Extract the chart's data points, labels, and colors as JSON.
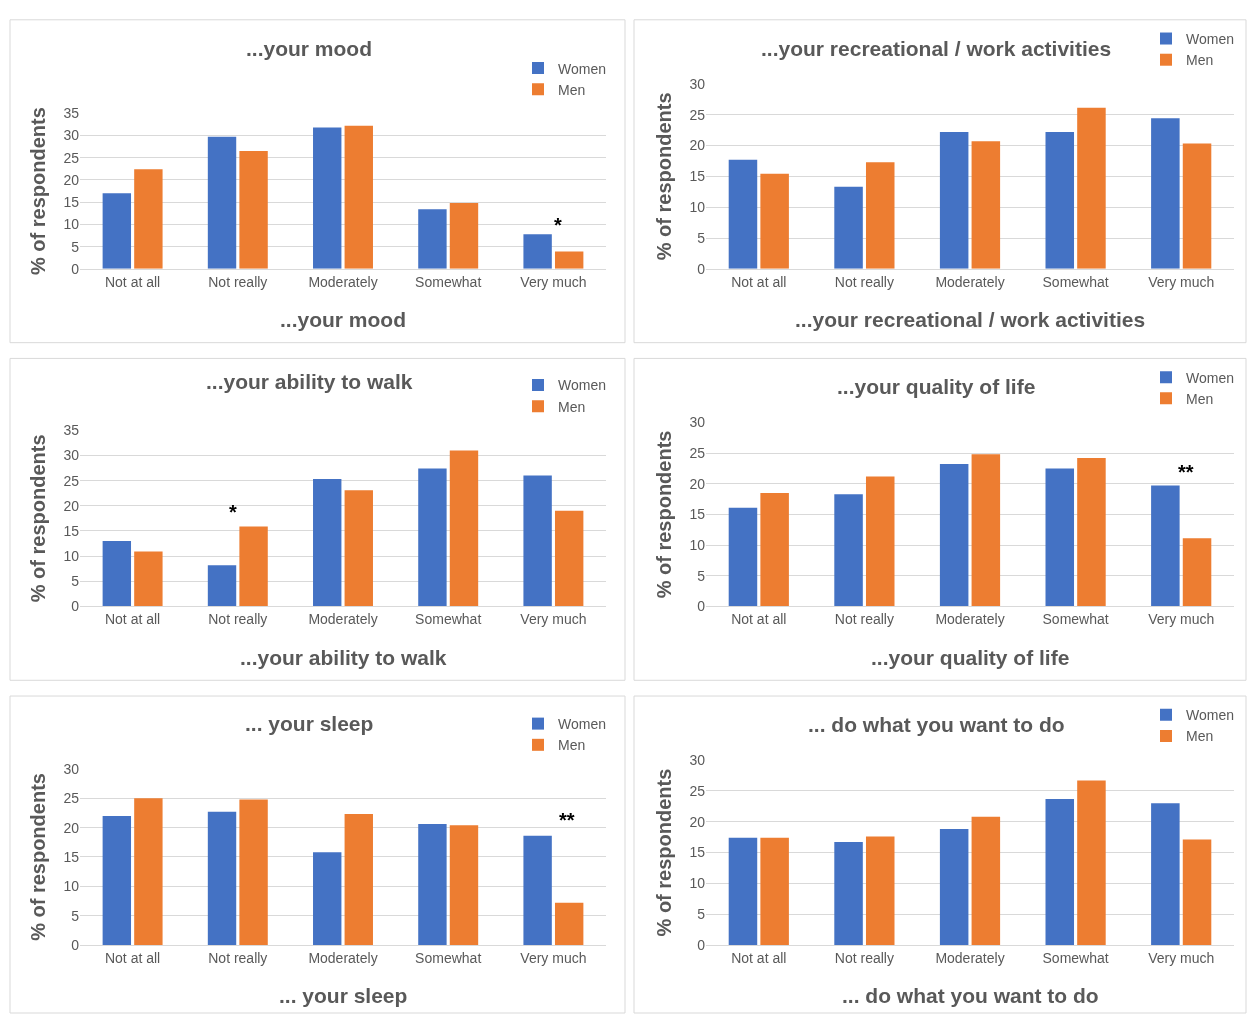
{
  "chart_data": [
    {
      "type": "bar",
      "title": "...your mood",
      "xlabel": "...your mood",
      "ylabel": "% of respondents",
      "categories": [
        "Not at all",
        "Not really",
        "Moderately",
        "Somewhat",
        "Very much"
      ],
      "series": [
        {
          "name": "Women",
          "color": "#4472c4",
          "values": [
            17,
            29.7,
            31.8,
            13.4,
            7.8
          ]
        },
        {
          "name": "Men",
          "color": "#ed7d31",
          "values": [
            22.4,
            26.5,
            32.2,
            14.8,
            3.9
          ]
        }
      ],
      "ylim": [
        0,
        35
      ],
      "yticks": [
        0,
        5,
        10,
        15,
        20,
        25,
        30,
        35
      ],
      "grid": "y",
      "legend": "top right",
      "annotations": [
        "*"
      ]
    },
    {
      "type": "bar",
      "title": "...your recreational / work activities",
      "xlabel": "...your recreational / work activities",
      "ylabel": "% of respondents",
      "categories": [
        "Not at all",
        "Not really",
        "Moderately",
        "Somewhat",
        "Very much"
      ],
      "series": [
        {
          "name": "Women",
          "color": "#4472c4",
          "values": [
            17.7,
            13.3,
            22.2,
            22.2,
            24.4
          ]
        },
        {
          "name": "Men",
          "color": "#ed7d31",
          "values": [
            15.4,
            17.3,
            20.7,
            26.1,
            20.3
          ]
        }
      ],
      "ylim": [
        0,
        30
      ],
      "yticks": [
        0,
        5,
        10,
        15,
        20,
        25,
        30
      ],
      "grid": "y",
      "legend": "top right"
    },
    {
      "type": "bar",
      "title": "...your ability to walk",
      "xlabel": "...your ability to walk",
      "ylabel": "% of respondents",
      "categories": [
        "Not at all",
        "Not really",
        "Moderately",
        "Somewhat",
        "Very much"
      ],
      "series": [
        {
          "name": "Women",
          "color": "#4472c4",
          "values": [
            13,
            8.2,
            25.3,
            27.4,
            26
          ]
        },
        {
          "name": "Men",
          "color": "#ed7d31",
          "values": [
            10.9,
            15.9,
            23.1,
            31,
            19
          ]
        }
      ],
      "ylim": [
        0,
        35
      ],
      "yticks": [
        0,
        5,
        10,
        15,
        20,
        25,
        30,
        35
      ],
      "grid": "y",
      "legend": "top right",
      "annotations": [
        "*"
      ]
    },
    {
      "type": "bar",
      "title": "...your quality of life",
      "xlabel": "...your quality of life",
      "ylabel": "% of respondents",
      "categories": [
        "Not at all",
        "Not really",
        "Moderately",
        "Somewhat",
        "Very much"
      ],
      "series": [
        {
          "name": "Women",
          "color": "#4472c4",
          "values": [
            16.1,
            18.3,
            23.2,
            22.5,
            19.7
          ]
        },
        {
          "name": "Men",
          "color": "#ed7d31",
          "values": [
            18.5,
            21.2,
            24.8,
            24.2,
            11.1
          ]
        }
      ],
      "ylim": [
        0,
        30
      ],
      "yticks": [
        0,
        5,
        10,
        15,
        20,
        25,
        30
      ],
      "grid": "y",
      "legend": "top right",
      "annotations": [
        "**"
      ]
    },
    {
      "type": "bar",
      "title": "... your sleep",
      "xlabel": "... your sleep",
      "ylabel": "% of respondents",
      "categories": [
        "Not at all",
        "Not really",
        "Moderately",
        "Somewhat",
        "Very much"
      ],
      "series": [
        {
          "name": "Women",
          "color": "#4472c4",
          "values": [
            22,
            22.7,
            15.8,
            20.6,
            18.6
          ]
        },
        {
          "name": "Men",
          "color": "#ed7d31",
          "values": [
            25,
            24.8,
            22.3,
            20.4,
            7.2
          ]
        }
      ],
      "ylim": [
        0,
        30
      ],
      "yticks": [
        0,
        5,
        10,
        15,
        20,
        25,
        30
      ],
      "grid": "y",
      "legend": "top right",
      "annotations": [
        "**"
      ]
    },
    {
      "type": "bar",
      "title": "... do what you want to do",
      "xlabel": "... do what you want to do",
      "ylabel": "% of respondents",
      "categories": [
        "Not at all",
        "Not really",
        "Moderately",
        "Somewhat",
        "Very much"
      ],
      "series": [
        {
          "name": "Women",
          "color": "#4472c4",
          "values": [
            17.4,
            16.7,
            18.8,
            23.7,
            23
          ]
        },
        {
          "name": "Men",
          "color": "#ed7d31",
          "values": [
            17.4,
            17.6,
            20.8,
            26.7,
            17.1
          ]
        }
      ],
      "ylim": [
        0,
        30
      ],
      "yticks": [
        0,
        5,
        10,
        15,
        20,
        25,
        30
      ],
      "grid": "y",
      "legend": "top right"
    }
  ]
}
